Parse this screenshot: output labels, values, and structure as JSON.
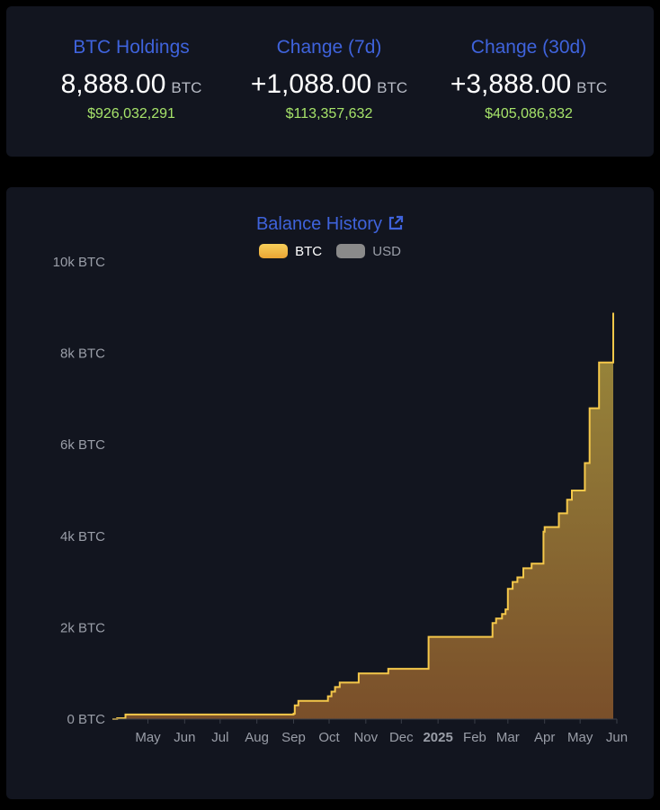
{
  "stats": [
    {
      "title": "BTC Holdings",
      "value": "8,888.00",
      "unit": "BTC",
      "usd": "$926,032,291"
    },
    {
      "title": "Change (7d)",
      "value": "+1,088.00",
      "unit": "BTC",
      "usd": "$113,357,632"
    },
    {
      "title": "Change (30d)",
      "value": "+3,888.00",
      "unit": "BTC",
      "usd": "$405,086,832"
    }
  ],
  "colors": {
    "accent": "#3f63dc",
    "usd_green": "#a6e36a",
    "btc_line": "#f5c84a",
    "btc_swatch": "#f2b33a",
    "usd_swatch": "#8a8a8a",
    "card_bg": "#12151f"
  },
  "chart_data": {
    "type": "area",
    "title": "Balance History",
    "title_icon": "external-link-icon",
    "legend": [
      {
        "name": "BTC",
        "active": true
      },
      {
        "name": "USD",
        "active": false
      }
    ],
    "legend_position": "top-center",
    "y_axis": {
      "min": 0,
      "max": 10000,
      "ticks": [
        0,
        2000,
        4000,
        6000,
        8000,
        10000
      ],
      "tick_labels": [
        "0 BTC",
        "2k BTC",
        "4k BTC",
        "6k BTC",
        "8k BTC",
        "10k BTC"
      ]
    },
    "x_axis": {
      "min": "2024-04-01",
      "max": "2025-06-01",
      "ticks": [
        "2024-05-01",
        "2024-06-01",
        "2024-07-01",
        "2024-08-01",
        "2024-09-01",
        "2024-10-01",
        "2024-11-01",
        "2024-12-01",
        "2025-01-01",
        "2025-02-01",
        "2025-03-01",
        "2025-04-01",
        "2025-05-01",
        "2025-06-01"
      ],
      "tick_labels": [
        "May",
        "Jun",
        "Jul",
        "Aug",
        "Sep",
        "Oct",
        "Nov",
        "Dec",
        "2025",
        "Feb",
        "Mar",
        "Apr",
        "May",
        "Jun"
      ],
      "bold_labels": [
        "2025"
      ]
    },
    "grid": false,
    "series": [
      {
        "name": "BTC",
        "step": true,
        "points": [
          [
            "2024-04-01",
            0
          ],
          [
            "2024-04-05",
            20
          ],
          [
            "2024-04-12",
            100
          ],
          [
            "2024-09-01",
            120
          ],
          [
            "2024-09-02",
            300
          ],
          [
            "2024-09-05",
            400
          ],
          [
            "2024-09-30",
            500
          ],
          [
            "2024-10-03",
            600
          ],
          [
            "2024-10-06",
            700
          ],
          [
            "2024-10-10",
            800
          ],
          [
            "2024-10-26",
            1000
          ],
          [
            "2024-11-20",
            1100
          ],
          [
            "2024-12-24",
            1800
          ],
          [
            "2025-02-16",
            2100
          ],
          [
            "2025-02-19",
            2200
          ],
          [
            "2025-02-24",
            2300
          ],
          [
            "2025-02-27",
            2400
          ],
          [
            "2025-03-01",
            2850
          ],
          [
            "2025-03-05",
            3000
          ],
          [
            "2025-03-09",
            3100
          ],
          [
            "2025-03-14",
            3300
          ],
          [
            "2025-03-21",
            3400
          ],
          [
            "2025-03-31",
            4100
          ],
          [
            "2025-04-01",
            4200
          ],
          [
            "2025-04-13",
            4500
          ],
          [
            "2025-04-20",
            4800
          ],
          [
            "2025-04-24",
            5000
          ],
          [
            "2025-05-05",
            5600
          ],
          [
            "2025-05-09",
            6800
          ],
          [
            "2025-05-17",
            7800
          ],
          [
            "2025-05-29",
            8888
          ]
        ]
      }
    ]
  }
}
